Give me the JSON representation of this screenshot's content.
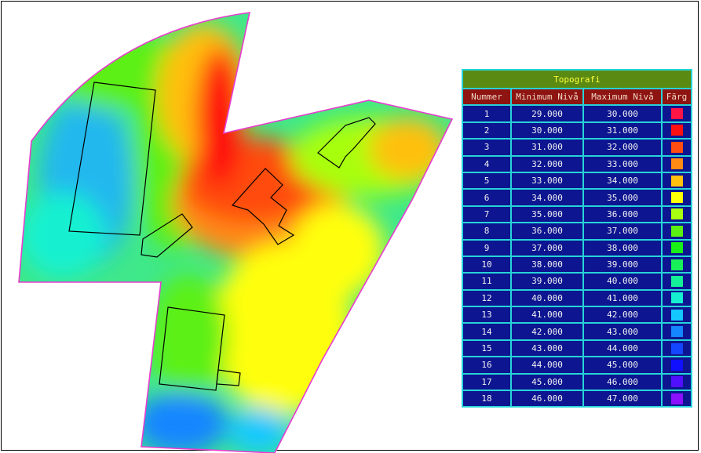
{
  "legend": {
    "title": "Topografi",
    "headers": {
      "nummer": "Nummer",
      "min": "Minimum Nivå",
      "max": "Maximum Nivå",
      "farg": "Färg"
    },
    "rows": [
      {
        "nummer": "1",
        "min": "29.000",
        "max": "30.000",
        "color": "#ff1446"
      },
      {
        "nummer": "2",
        "min": "30.000",
        "max": "31.000",
        "color": "#ff1010"
      },
      {
        "nummer": "3",
        "min": "31.000",
        "max": "32.000",
        "color": "#ff4c10"
      },
      {
        "nummer": "4",
        "min": "32.000",
        "max": "33.000",
        "color": "#ff8a14"
      },
      {
        "nummer": "5",
        "min": "33.000",
        "max": "34.000",
        "color": "#ffc010"
      },
      {
        "nummer": "6",
        "min": "34.000",
        "max": "35.000",
        "color": "#ffff0a"
      },
      {
        "nummer": "7",
        "min": "35.000",
        "max": "36.000",
        "color": "#a8ff10"
      },
      {
        "nummer": "8",
        "min": "36.000",
        "max": "37.000",
        "color": "#5cf012"
      },
      {
        "nummer": "9",
        "min": "37.000",
        "max": "38.000",
        "color": "#18f018"
      },
      {
        "nummer": "10",
        "min": "38.000",
        "max": "39.000",
        "color": "#18f05a"
      },
      {
        "nummer": "11",
        "min": "39.000",
        "max": "40.000",
        "color": "#14f098"
      },
      {
        "nummer": "12",
        "min": "40.000",
        "max": "41.000",
        "color": "#14f0d0"
      },
      {
        "nummer": "13",
        "min": "41.000",
        "max": "42.000",
        "color": "#14c8ff"
      },
      {
        "nummer": "14",
        "min": "42.000",
        "max": "43.000",
        "color": "#1486ff"
      },
      {
        "nummer": "15",
        "min": "43.000",
        "max": "44.000",
        "color": "#1446ff"
      },
      {
        "nummer": "16",
        "min": "44.000",
        "max": "45.000",
        "color": "#1010ff"
      },
      {
        "nummer": "17",
        "min": "45.000",
        "max": "46.000",
        "color": "#5010ff"
      },
      {
        "nummer": "18",
        "min": "46.000",
        "max": "47.000",
        "color": "#8a10ff"
      }
    ]
  }
}
